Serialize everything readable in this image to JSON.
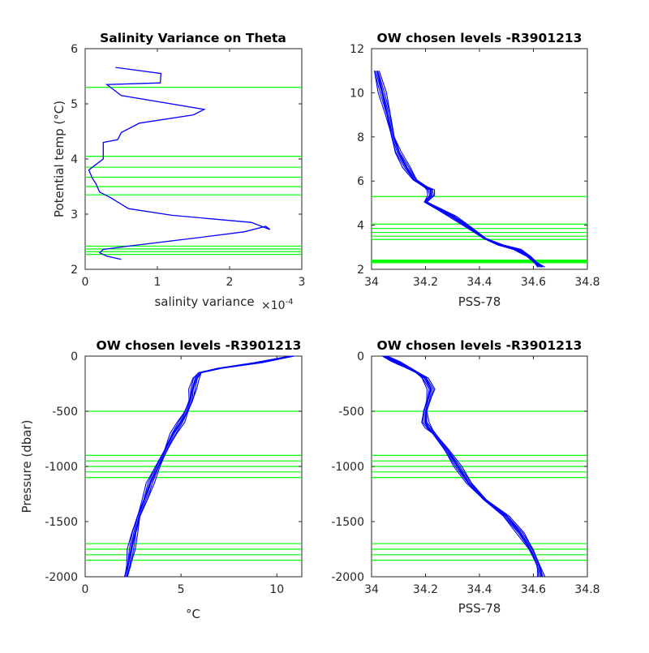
{
  "chart_data": [
    {
      "id": "variance",
      "type": "line",
      "title": "Salinity Variance on Theta",
      "xlabel": "salinity variance",
      "xexponent": "×10",
      "xexponent_power": "-4",
      "ylabel": "Potential temp (°C)",
      "xlim": [
        0,
        3
      ],
      "ylim": [
        2,
        6
      ],
      "xticks": [
        0,
        1,
        2,
        3
      ],
      "xtick_labels": [
        "0",
        "1",
        "2",
        "3"
      ],
      "yticks": [
        2,
        3,
        4,
        5,
        6
      ],
      "ytick_labels": [
        "2",
        "3",
        "4",
        "5",
        "6"
      ],
      "series": [
        {
          "x": [
            0.5,
            0.3,
            0.2,
            0.25,
            0.6,
            1.1,
            1.6,
            2.2,
            2.5,
            2.56,
            2.3,
            1.2,
            0.6,
            0.35,
            0.2,
            0.15,
            0.1,
            0.05,
            0.15,
            0.25,
            0.25,
            0.45,
            0.5,
            0.75,
            1.5,
            1.65,
            0.5,
            0.35,
            0.3,
            1.04,
            1.05,
            0.42
          ],
          "y": [
            2.18,
            2.24,
            2.3,
            2.36,
            2.42,
            2.5,
            2.58,
            2.68,
            2.78,
            2.72,
            2.85,
            2.98,
            3.1,
            3.3,
            3.4,
            3.55,
            3.65,
            3.8,
            3.9,
            4.0,
            4.3,
            4.35,
            4.48,
            4.65,
            4.8,
            4.9,
            5.15,
            5.3,
            5.35,
            5.38,
            5.55,
            5.66
          ]
        }
      ],
      "levels": [
        2.27,
        2.32,
        2.37,
        2.42,
        3.35,
        3.5,
        3.67,
        3.85,
        4.05,
        5.3
      ]
    },
    {
      "id": "theta-salinity",
      "type": "line",
      "title": "OW chosen levels -R3901213",
      "xlabel": "PSS-78",
      "ylabel": "",
      "xlim": [
        34,
        34.8
      ],
      "ylim": [
        2,
        12
      ],
      "xticks": [
        34,
        34.2,
        34.4,
        34.6,
        34.8
      ],
      "xtick_labels": [
        "34",
        "34.2",
        "34.4",
        "34.6",
        "34.8"
      ],
      "yticks": [
        2,
        4,
        6,
        8,
        10,
        12
      ],
      "ytick_labels": [
        "2",
        "4",
        "6",
        "8",
        "10",
        "12"
      ],
      "profile": {
        "x": [
          34.02,
          34.04,
          34.06,
          34.08,
          34.1,
          34.13,
          34.16,
          34.2,
          34.22,
          34.22,
          34.2,
          34.24,
          34.3,
          34.36,
          34.42,
          34.48,
          34.54,
          34.58,
          34.61,
          34.63
        ],
        "y": [
          11.0,
          10.0,
          9.0,
          8.0,
          7.3,
          6.6,
          6.05,
          5.75,
          5.6,
          5.35,
          5.05,
          4.8,
          4.4,
          3.9,
          3.4,
          3.1,
          2.9,
          2.6,
          2.3,
          2.1
        ]
      },
      "levels": [
        2.3,
        2.33,
        2.36,
        2.39,
        2.42,
        3.35,
        3.5,
        3.67,
        3.85,
        4.05,
        5.3
      ]
    },
    {
      "id": "pressure-temp",
      "type": "line",
      "title": "OW chosen levels -R3901213",
      "xlabel": "°C",
      "ylabel": "Pressure (dbar)",
      "xlim": [
        0,
        11.3
      ],
      "ylim": [
        -2000,
        0
      ],
      "xticks": [
        0,
        5,
        10
      ],
      "xtick_labels": [
        "0",
        "5",
        "10"
      ],
      "yticks": [
        -2000,
        -1500,
        -1000,
        -500,
        0
      ],
      "ytick_labels": [
        "-2000",
        "-1500",
        "-1000",
        "-500",
        "0"
      ],
      "profile": {
        "x": [
          10.8,
          9.0,
          7.0,
          6.0,
          5.8,
          5.6,
          5.5,
          5.3,
          5.0,
          4.6,
          4.2,
          3.8,
          3.4,
          3.1,
          2.8,
          2.6,
          2.4,
          2.25,
          2.15
        ],
        "y": [
          0,
          -60,
          -110,
          -150,
          -200,
          -300,
          -400,
          -500,
          -600,
          -700,
          -850,
          -1000,
          -1150,
          -1300,
          -1450,
          -1600,
          -1750,
          -1900,
          -2000
        ]
      },
      "levels": [
        -500,
        -900,
        -950,
        -1000,
        -1050,
        -1100,
        -1700,
        -1750,
        -1800,
        -1850
      ]
    },
    {
      "id": "pressure-salinity",
      "type": "line",
      "title": "OW chosen levels -R3901213",
      "xlabel": "PSS-78",
      "ylabel": "",
      "xlim": [
        34,
        34.8
      ],
      "ylim": [
        -2000,
        0
      ],
      "xticks": [
        34,
        34.2,
        34.4,
        34.6,
        34.8
      ],
      "xtick_labels": [
        "34",
        "34.2",
        "34.4",
        "34.6",
        "34.8"
      ],
      "yticks": [
        -2000,
        -1500,
        -1000,
        -500,
        0
      ],
      "ytick_labels": [
        "-2000",
        "-1500",
        "-1000",
        "-500",
        "0"
      ],
      "profile": {
        "x": [
          34.05,
          34.09,
          34.13,
          34.17,
          34.2,
          34.22,
          34.21,
          34.2,
          34.2,
          34.21,
          34.23,
          34.28,
          34.32,
          34.36,
          34.42,
          34.5,
          34.55,
          34.59,
          34.62,
          34.63
        ],
        "y": [
          0,
          -50,
          -100,
          -150,
          -200,
          -300,
          -400,
          -500,
          -600,
          -650,
          -700,
          -850,
          -1000,
          -1150,
          -1300,
          -1450,
          -1600,
          -1750,
          -1900,
          -2000
        ]
      },
      "levels": [
        -500,
        -900,
        -950,
        -1000,
        -1050,
        -1100,
        -1700,
        -1750,
        -1800,
        -1850
      ]
    }
  ],
  "colors": {
    "profile": "#0000ff",
    "level": "#00ff00",
    "axis": "#262626"
  }
}
